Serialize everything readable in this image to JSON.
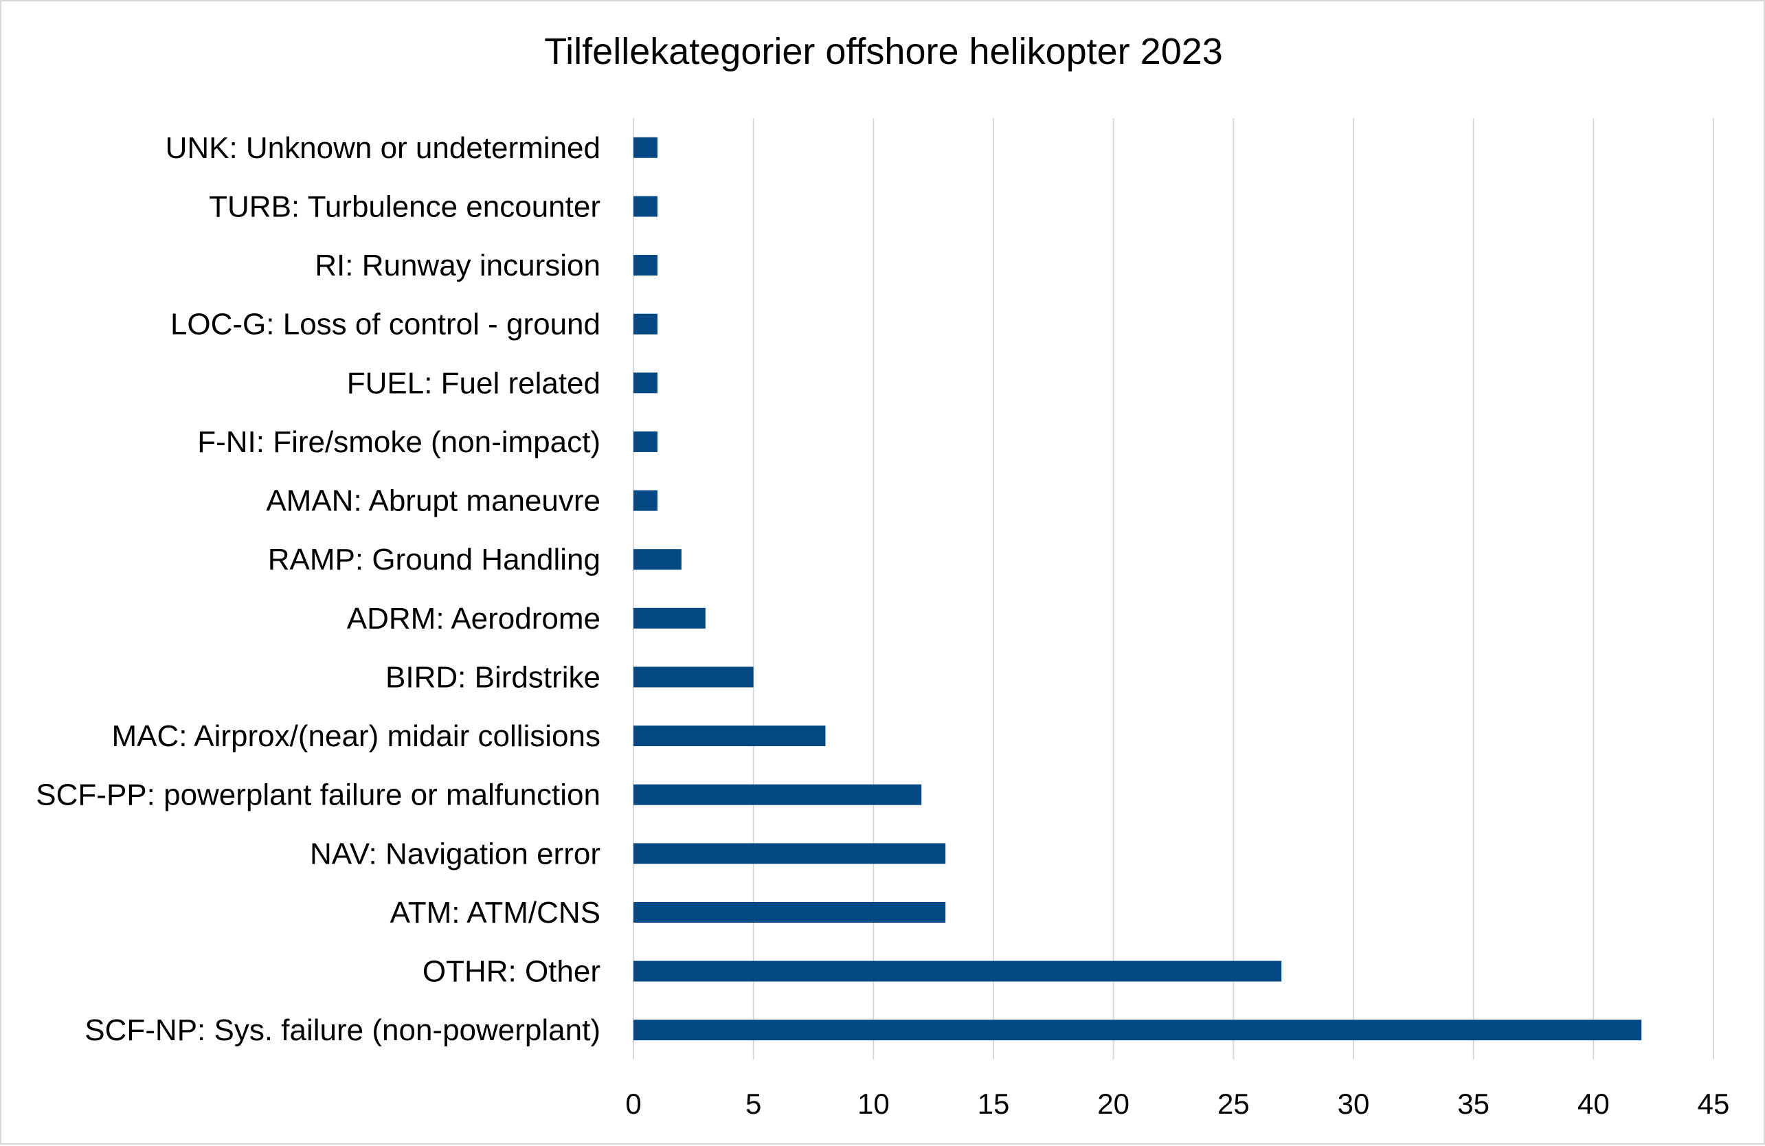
{
  "chart_data": {
    "type": "bar",
    "orientation": "horizontal",
    "title": "Tilfellekategorier offshore helikopter 2023",
    "xlabel": "",
    "ylabel": "",
    "categories": [
      "UNK: Unknown or undetermined",
      "TURB: Turbulence encounter",
      "RI: Runway incursion",
      "LOC-G: Loss of control - ground",
      "FUEL: Fuel related",
      "F-NI: Fire/smoke (non-impact)",
      "AMAN: Abrupt maneuvre",
      "RAMP: Ground Handling",
      "ADRM: Aerodrome",
      "BIRD: Birdstrike",
      "MAC: Airprox/(near) midair collisions",
      "SCF-PP: powerplant failure or malfunction",
      "NAV: Navigation error",
      "ATM: ATM/CNS",
      "OTHR: Other",
      "SCF-NP: Sys. failure (non-powerplant)"
    ],
    "values": [
      1,
      1,
      1,
      1,
      1,
      1,
      1,
      2,
      3,
      5,
      8,
      12,
      13,
      13,
      27,
      42
    ],
    "xlim": [
      0,
      45
    ],
    "xticks": [
      "0",
      "5",
      "10",
      "15",
      "20",
      "25",
      "30",
      "35",
      "40",
      "45"
    ],
    "grid": "vertical",
    "legend": "none",
    "colors": {
      "bar": "#044884",
      "grid": "#d9d9d9",
      "border": "#d9d9d9"
    }
  }
}
